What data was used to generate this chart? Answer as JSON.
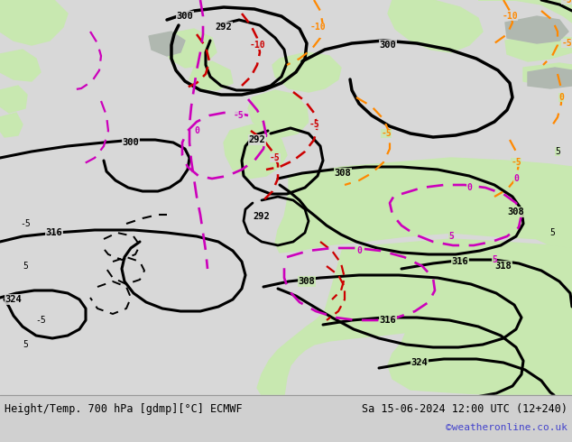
{
  "title_left": "Height/Temp. 700 hPa [gdmp][°C] ECMWF",
  "title_right": "Sa 15-06-2024 12:00 UTC (12+240)",
  "watermark": "©weatheronline.co.uk",
  "bg_color": "#e8e8e8",
  "map_bg_ocean": "#d8d8d8",
  "map_bg_land_green": "#c8e8b0",
  "map_bg_land_gray": "#b8b8b8",
  "footer_bg": "#d0d0d0",
  "title_font_size": 8.5,
  "watermark_color": "#4444cc",
  "watermark_fontsize": 8,
  "black_lw": 2.2,
  "temp_lw": 1.6
}
